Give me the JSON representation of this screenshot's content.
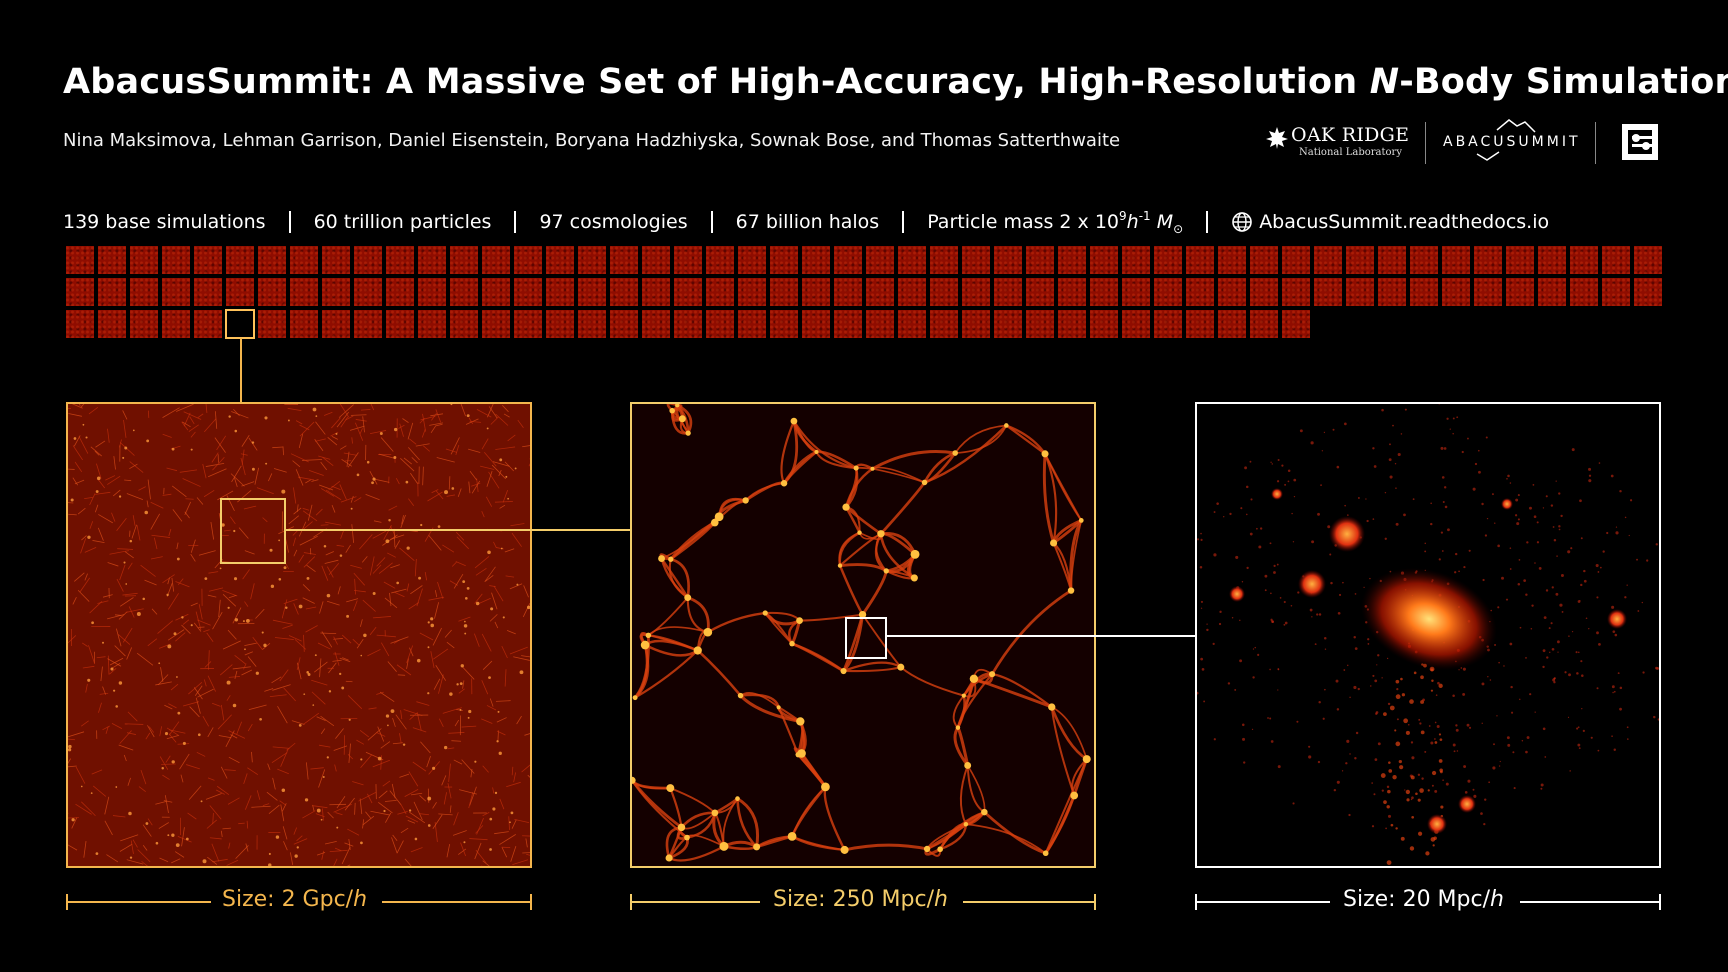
{
  "header": {
    "title_main": "AbacusSummit: A Massive Set of High-Accuracy, High-Resolution ",
    "title_italic": "N",
    "title_end": "-Body Simulations",
    "authors": "Nina Maksimova, Lehman Garrison, Daniel Eisenstein, Boryana Hadzhiyska, Sownak Bose, and Thomas Satterthwaite"
  },
  "logos": {
    "ornl_main": "OAK RIDGE",
    "ornl_sub": "National Laboratory",
    "abacus": "ABACUSUMMIT"
  },
  "stats": {
    "base_sims": "139 base simulations",
    "particles": "60 trillion particles",
    "cosmologies": "97 cosmologies",
    "halos": "67 billion halos",
    "mass_prefix": "Particle mass  2  x 10",
    "mass_exp": "9",
    "mass_h": "h",
    "mass_hexp": "-1",
    "mass_M": " M",
    "mass_sun": "⊙",
    "website": "AbacusSummit.readthedocs.io"
  },
  "simulation_grid": {
    "total_tiles": 139,
    "rows": [
      50,
      50,
      39
    ],
    "highlighted_index": 105
  },
  "panels": [
    {
      "size_prefix": "Size: 2 Gpc/",
      "size_unit": "h",
      "color": "#f4b64d"
    },
    {
      "size_prefix": "Size: 250 Mpc/",
      "size_unit": "h",
      "color": "#f4cd6a"
    },
    {
      "size_prefix": "Size: 20 Mpc/",
      "size_unit": "h",
      "color": "#ffffff"
    }
  ]
}
